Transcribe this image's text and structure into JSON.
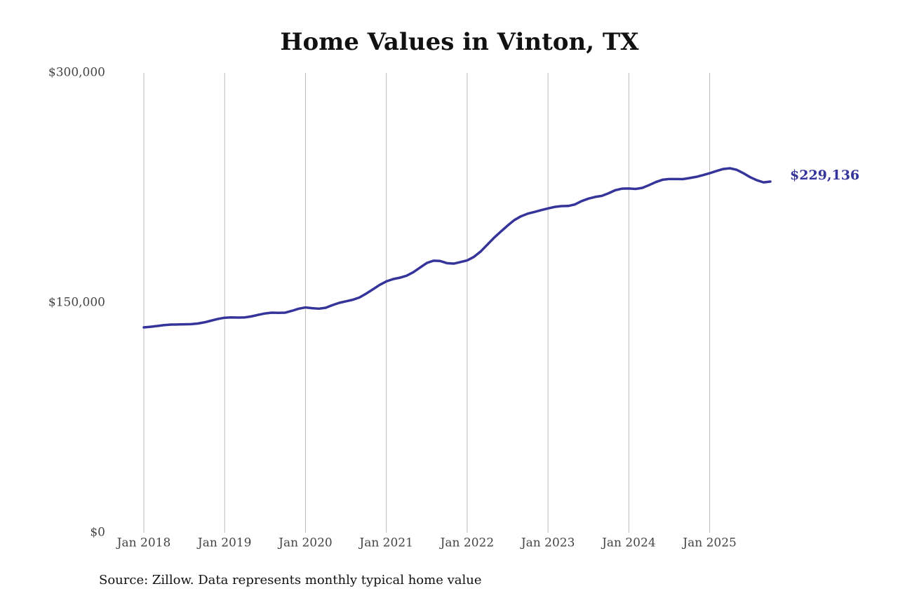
{
  "chart_data": {
    "type": "line",
    "title": "Home Values in Vinton, TX",
    "source": "Source: Zillow. Data represents monthly typical home value",
    "x": [
      "2018-01",
      "2018-02",
      "2018-03",
      "2018-04",
      "2018-05",
      "2018-06",
      "2018-07",
      "2018-08",
      "2018-09",
      "2018-10",
      "2018-11",
      "2018-12",
      "2019-01",
      "2019-02",
      "2019-03",
      "2019-04",
      "2019-05",
      "2019-06",
      "2019-07",
      "2019-08",
      "2019-09",
      "2019-10",
      "2019-11",
      "2019-12",
      "2020-01",
      "2020-02",
      "2020-03",
      "2020-04",
      "2020-05",
      "2020-06",
      "2020-07",
      "2020-08",
      "2020-09",
      "2020-10",
      "2020-11",
      "2020-12",
      "2021-01",
      "2021-02",
      "2021-03",
      "2021-04",
      "2021-05",
      "2021-06",
      "2021-07",
      "2021-08",
      "2021-09",
      "2021-10",
      "2021-11",
      "2021-12",
      "2022-01",
      "2022-02",
      "2022-03",
      "2022-04",
      "2022-05",
      "2022-06",
      "2022-07",
      "2022-08",
      "2022-09",
      "2022-10",
      "2022-11",
      "2022-12",
      "2023-01",
      "2023-02",
      "2023-03",
      "2023-04",
      "2023-05",
      "2023-06",
      "2023-07",
      "2023-08",
      "2023-09",
      "2023-10",
      "2023-11",
      "2023-12",
      "2024-01",
      "2024-02",
      "2024-03",
      "2024-04",
      "2024-05",
      "2024-06",
      "2024-07",
      "2024-08",
      "2024-09",
      "2024-10",
      "2024-11",
      "2024-12",
      "2025-01",
      "2025-02",
      "2025-03",
      "2025-04",
      "2025-05",
      "2025-06",
      "2025-07",
      "2025-08",
      "2025-09",
      "2025-10"
    ],
    "series": [
      {
        "name": "Vinton, TX",
        "color": "#35349a",
        "values": [
          134000,
          134400,
          134900,
          135500,
          135800,
          135900,
          136000,
          136100,
          136500,
          137300,
          138400,
          139500,
          140300,
          140500,
          140400,
          140500,
          141200,
          142200,
          143100,
          143600,
          143500,
          143600,
          144800,
          146200,
          147000,
          146500,
          146200,
          146800,
          148500,
          150000,
          151000,
          152000,
          153500,
          156000,
          158800,
          161700,
          164000,
          165500,
          166400,
          167700,
          170000,
          173000,
          176000,
          177500,
          177300,
          175900,
          175600,
          176600,
          177700,
          180000,
          183500,
          188000,
          192500,
          196500,
          200400,
          204000,
          206500,
          208200,
          209300,
          210500,
          211600,
          212600,
          213100,
          213200,
          214200,
          216400,
          218000,
          219100,
          219800,
          221500,
          223500,
          224500,
          224600,
          224300,
          225000,
          226800,
          228800,
          230300,
          230800,
          230800,
          230700,
          231400,
          232200,
          233300,
          234600,
          236000,
          237300,
          237800,
          236800,
          234600,
          232000,
          230000,
          228600,
          229136
        ],
        "value_labels": [
          null,
          null,
          null,
          null,
          null,
          null,
          null,
          null,
          null,
          null,
          null,
          null,
          null,
          null,
          null,
          null,
          null,
          null,
          null,
          null,
          null,
          null,
          null,
          null,
          null,
          null,
          null,
          null,
          null,
          null,
          null,
          null,
          null,
          null,
          null,
          null,
          null,
          null,
          null,
          null,
          null,
          null,
          null,
          null,
          null,
          null,
          null,
          null,
          null,
          null,
          null,
          null,
          null,
          null,
          null,
          null,
          null,
          null,
          null,
          null,
          null,
          null,
          null,
          null,
          null,
          null,
          null,
          null,
          null,
          null,
          null,
          null,
          null,
          null,
          null,
          null,
          null,
          null,
          null,
          null,
          null,
          null,
          null,
          null,
          null,
          null,
          null,
          null,
          null,
          null,
          null,
          null,
          null,
          "$229,136"
        ]
      }
    ],
    "xlim": [
      "2018-01",
      "2025-10"
    ],
    "xticks": [
      {
        "value": "2018-01",
        "label": "Jan 2018"
      },
      {
        "value": "2019-01",
        "label": "Jan 2019"
      },
      {
        "value": "2020-01",
        "label": "Jan 2020"
      },
      {
        "value": "2021-01",
        "label": "Jan 2021"
      },
      {
        "value": "2022-01",
        "label": "Jan 2022"
      },
      {
        "value": "2023-01",
        "label": "Jan 2023"
      },
      {
        "value": "2024-01",
        "label": "Jan 2024"
      },
      {
        "value": "2025-01",
        "label": "Jan 2025"
      }
    ],
    "ylim": [
      0,
      300000
    ],
    "yticks": [
      {
        "value": 0,
        "label": "$0"
      },
      {
        "value": 150000,
        "label": "$150,000"
      },
      {
        "value": 300000,
        "label": "$300,000"
      }
    ],
    "grid": "x"
  }
}
